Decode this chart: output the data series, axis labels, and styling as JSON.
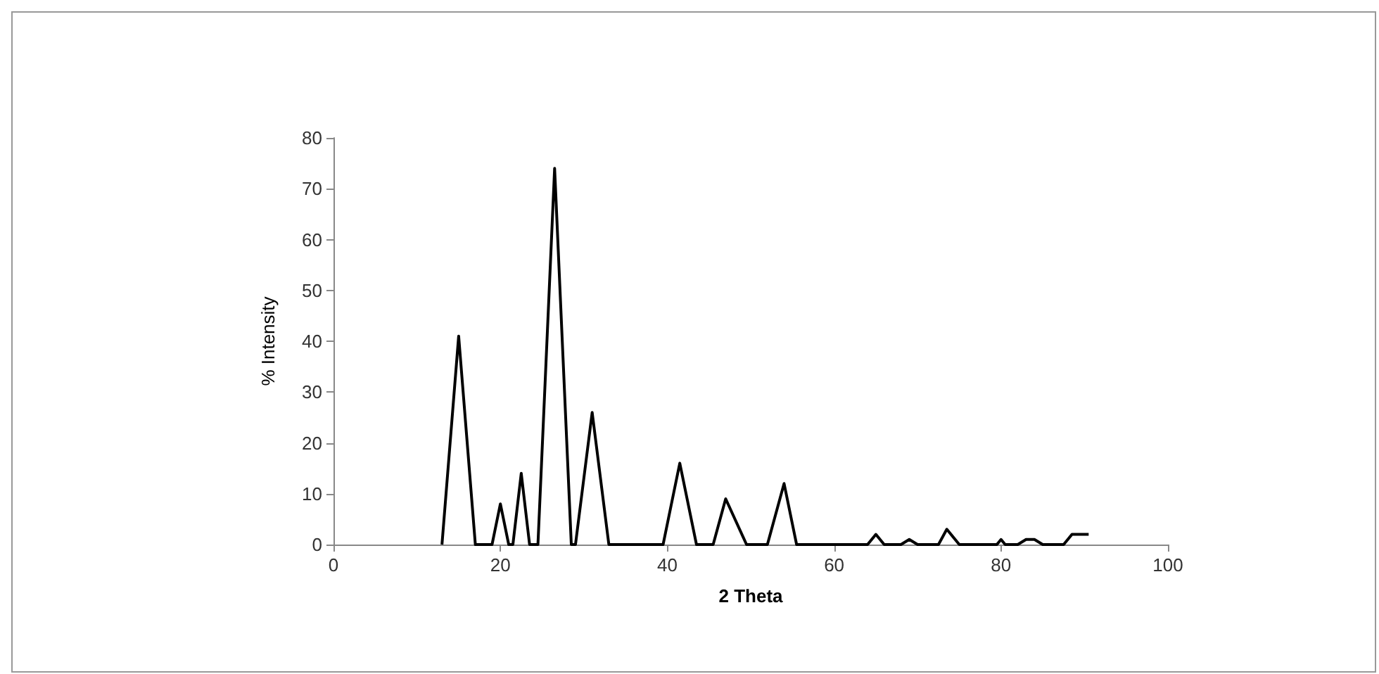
{
  "chart_data": {
    "type": "line",
    "xlabel": "2 Theta",
    "ylabel": "% Intensity",
    "x": [
      13,
      15,
      17,
      19,
      20,
      21,
      21.5,
      22.5,
      23.5,
      24.5,
      26.5,
      28.5,
      29,
      31,
      33,
      39.5,
      41.5,
      43.5,
      45.5,
      47,
      49.5,
      52,
      54,
      55.5,
      64,
      65,
      66,
      68,
      69,
      70,
      72.5,
      73.5,
      75,
      79.5,
      80,
      80.5,
      82,
      83,
      84,
      85,
      87.5,
      88.5,
      90.5
    ],
    "series": [
      {
        "color": "#000000",
        "values": [
          0,
          41,
          0,
          0,
          8,
          0,
          0,
          14,
          0,
          0,
          74,
          0,
          0,
          26,
          0,
          0,
          16,
          0,
          0,
          9,
          0,
          0,
          12,
          0,
          0,
          2,
          0,
          0,
          1,
          0,
          0,
          3,
          0,
          0,
          1,
          0,
          0,
          1,
          1,
          0,
          0,
          2,
          2
        ]
      }
    ],
    "xlim": [
      0,
      100
    ],
    "xticks": [
      0,
      20,
      40,
      60,
      80,
      100
    ],
    "ylim": [
      0,
      80
    ],
    "yticks": [
      0,
      10,
      20,
      30,
      40,
      50,
      60,
      70,
      80
    ],
    "grid": false,
    "marker": "none",
    "line_style": "solid"
  }
}
